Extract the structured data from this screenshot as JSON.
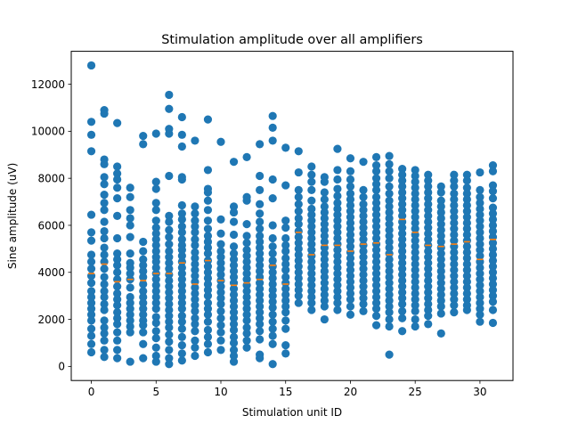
{
  "chart_data": {
    "type": "scatter",
    "title": "Stimulation amplitude over all amplifiers",
    "xlabel": "Stimulation unit ID",
    "ylabel": "Sine amplitude (uV)",
    "xlim": [
      -1.55,
      32.55
    ],
    "ylim": [
      -600,
      13400
    ],
    "xticks": [
      0,
      5,
      10,
      15,
      20,
      25,
      30
    ],
    "yticks": [
      0,
      2000,
      4000,
      6000,
      8000,
      10000,
      12000
    ],
    "xtick_labels": [
      "0",
      "5",
      "10",
      "15",
      "20",
      "25",
      "30"
    ],
    "ytick_labels": [
      "0",
      "2000",
      "4000",
      "6000",
      "8000",
      "10000",
      "12000"
    ],
    "grid": false,
    "legend": "none",
    "series": [
      {
        "marker": "circle",
        "color": "#1f77b4",
        "points_by_unit": [
          {
            "x": 0,
            "y": [
              12800,
              10400,
              9850,
              9150,
              6450,
              5700,
              5350,
              4750,
              4450,
              4150,
              3850,
              3550,
              3200,
              2950,
              2700,
              2450,
              2200,
              1950,
              1600,
              1300,
              950,
              600
            ]
          },
          {
            "x": 1,
            "y": [
              10900,
              10750,
              8800,
              8600,
              8050,
              7750,
              7300,
              6950,
              6650,
              6150,
              5750,
              5450,
              5050,
              4750,
              4450,
              4150,
              3800,
              3500,
              3200,
              2950,
              2650,
              2400,
              1950,
              1650,
              1400,
              1100,
              700,
              400
            ]
          },
          {
            "x": 2,
            "y": [
              10350,
              8500,
              8200,
              7950,
              7600,
              7150,
              6400,
              5450,
              4800,
              4550,
              4300,
              4000,
              3700,
              3400,
              3100,
              2850,
              2600,
              2300,
              2050,
              1800,
              1450,
              1100,
              700,
              350
            ]
          },
          {
            "x": 3,
            "y": [
              7600,
              7200,
              6650,
              6300,
              6000,
              5500,
              4800,
              4400,
              4200,
              3950,
              3700,
              3350,
              2950,
              2700,
              2450,
              2200,
              1950,
              1700,
              1450,
              200
            ]
          },
          {
            "x": 4,
            "y": [
              9800,
              9450,
              5300,
              4900,
              4550,
              4300,
              4050,
              3800,
              3500,
              3200,
              2950,
              2700,
              2450,
              2200,
              1950,
              1750,
              1450,
              950,
              350
            ]
          },
          {
            "x": 5,
            "y": [
              9900,
              7850,
              7550,
              6950,
              6650,
              6200,
              5900,
              5650,
              5400,
              5150,
              4900,
              4650,
              4450,
              4200,
              3950,
              3700,
              3450,
              3200,
              2950,
              2700,
              2450,
              2100,
              1850,
              1500,
              1200,
              800,
              450,
              200
            ]
          },
          {
            "x": 6,
            "y": [
              11550,
              10950,
              10100,
              9900,
              8100,
              6400,
              6150,
              5800,
              5500,
              5200,
              4900,
              4650,
              4400,
              4150,
              3900,
              3650,
              3400,
              3150,
              2900,
              2650,
              2400,
              2150,
              1900,
              1650,
              1350,
              1050,
              700,
              350,
              100
            ]
          },
          {
            "x": 7,
            "y": [
              10600,
              9850,
              9350,
              8050,
              7950,
              6850,
              6500,
              6250,
              5950,
              5700,
              5400,
              5150,
              4950,
              4700,
              4450,
              4200,
              3950,
              3700,
              3450,
              3200,
              2950,
              2700,
              2450,
              2150,
              1900,
              1600,
              1250,
              900,
              550,
              250
            ]
          },
          {
            "x": 8,
            "y": [
              9600,
              6800,
              6500,
              6200,
              5950,
              5700,
              5400,
              5150,
              4850,
              4600,
              4350,
              4100,
              3850,
              3600,
              3350,
              3100,
              2850,
              2600,
              2350,
              2050,
              1800,
              1500,
              1100,
              800,
              450
            ]
          },
          {
            "x": 9,
            "y": [
              10500,
              8350,
              7550,
              7400,
              7050,
              6650,
              6200,
              5850,
              5550,
              5300,
              5050,
              4800,
              4500,
              4250,
              4000,
              3750,
              3500,
              3250,
              3000,
              2700,
              2450,
              2200,
              1900,
              1550,
              1250,
              950,
              600
            ]
          },
          {
            "x": 10,
            "y": [
              9550,
              6250,
              5650,
              5200,
              4900,
              4650,
              4400,
              4150,
              3900,
              3650,
              3400,
              3150,
              2900,
              2650,
              2350,
              2050,
              1750,
              1450,
              1100,
              700
            ]
          },
          {
            "x": 11,
            "y": [
              8700,
              6800,
              6550,
              6150,
              5600,
              5100,
              4800,
              4550,
              4300,
              4050,
              3800,
              3550,
              3300,
              3050,
              2800,
              2550,
              2300,
              2050,
              1800,
              1550,
              1250,
              1000,
              700,
              450,
              200
            ]
          },
          {
            "x": 12,
            "y": [
              8900,
              7200,
              7050,
              6050,
              5550,
              5250,
              4950,
              4700,
              4450,
              4200,
              3950,
              3700,
              3450,
              3200,
              2950,
              2700,
              2450,
              2200,
              1950,
              1650,
              1400,
              1100,
              800
            ]
          },
          {
            "x": 13,
            "y": [
              9450,
              8100,
              7500,
              6900,
              6500,
              6150,
              5850,
              5550,
              5300,
              5050,
              4800,
              4550,
              4300,
              4050,
              3800,
              3550,
              3300,
              3050,
              2800,
              2550,
              2300,
              2050,
              1800,
              1500,
              1150,
              500,
              350
            ]
          },
          {
            "x": 14,
            "y": [
              10650,
              10150,
              9600,
              7950,
              7150,
              6000,
              5450,
              5100,
              4800,
              4500,
              4250,
              4000,
              3750,
              3500,
              3250,
              3000,
              2750,
              2500,
              2200,
              1900,
              1600,
              1300,
              950,
              100
            ]
          },
          {
            "x": 15,
            "y": [
              9300,
              7700,
              6200,
              5900,
              5450,
              5150,
              4900,
              4600,
              4350,
              4100,
              3800,
              3550,
              3300,
              3050,
              2800,
              2550,
              2300,
              1950,
              1600,
              900,
              550
            ]
          },
          {
            "x": 16,
            "y": [
              9150,
              8250,
              7500,
              7200,
              6900,
              6600,
              6300,
              6050,
              5750,
              5500,
              5250,
              5000,
              4750,
              4500,
              4250,
              4000,
              3750,
              3500,
              3250,
              3000,
              2700
            ]
          },
          {
            "x": 17,
            "y": [
              8500,
              8150,
              7850,
              7500,
              7050,
              6700,
              6450,
              6200,
              5950,
              5700,
              5450,
              5200,
              4950,
              4700,
              4450,
              4200,
              3950,
              3700,
              3450,
              3200,
              2950,
              2700,
              2400
            ]
          },
          {
            "x": 18,
            "y": [
              8050,
              7850,
              7400,
              7100,
              6800,
              6550,
              6300,
              6050,
              5800,
              5550,
              5300,
              5050,
              4800,
              4550,
              4300,
              4050,
              3800,
              3550,
              3300,
              3050,
              2800,
              2550,
              2000
            ]
          },
          {
            "x": 19,
            "y": [
              9250,
              8350,
              7950,
              7550,
              7250,
              6950,
              6700,
              6450,
              6200,
              5950,
              5700,
              5450,
              5200,
              4950,
              4700,
              4450,
              4200,
              3950,
              3700,
              3450,
              3200,
              2950,
              2700,
              2400
            ]
          },
          {
            "x": 20,
            "y": [
              8850,
              8300,
              7950,
              7650,
              7350,
              7100,
              6850,
              6600,
              6350,
              6100,
              5850,
              5600,
              5350,
              5100,
              4850,
              4600,
              4350,
              4100,
              3850,
              3600,
              3350,
              3100,
              2850,
              2550,
              2200
            ]
          },
          {
            "x": 21,
            "y": [
              8700,
              7500,
              7200,
              6900,
              6650,
              6400,
              6150,
              5900,
              5650,
              5400,
              5150,
              4900,
              4650,
              4400,
              4150,
              3900,
              3650,
              3400,
              3150,
              2900,
              2650,
              2350
            ]
          },
          {
            "x": 22,
            "y": [
              8900,
              8550,
              8300,
              8000,
              7750,
              7500,
              7200,
              6950,
              6700,
              6450,
              6200,
              5950,
              5700,
              5450,
              5200,
              4950,
              4700,
              4450,
              4200,
              3950,
              3700,
              3450,
              3200,
              2950,
              2700,
              2450,
              2150,
              1750
            ]
          },
          {
            "x": 23,
            "y": [
              8950,
              8600,
              8300,
              8000,
              7650,
              7350,
              7050,
              6800,
              6550,
              6300,
              6050,
              5800,
              5550,
              5300,
              5050,
              4800,
              4550,
              4300,
              4050,
              3800,
              3550,
              3300,
              3050,
              2800,
              2550,
              2300,
              2000,
              1700,
              500
            ]
          },
          {
            "x": 24,
            "y": [
              8400,
              8150,
              7900,
              7650,
              7400,
              7150,
              6900,
              6650,
              6400,
              6150,
              5900,
              5650,
              5400,
              5150,
              4900,
              4650,
              4400,
              4150,
              3900,
              3650,
              3400,
              3150,
              2900,
              2650,
              2350,
              2050,
              1500
            ]
          },
          {
            "x": 25,
            "y": [
              8350,
              8100,
              7850,
              7600,
              7350,
              7100,
              6850,
              6600,
              6350,
              6100,
              5850,
              5600,
              5350,
              5100,
              4850,
              4600,
              4350,
              4100,
              3850,
              3600,
              3350,
              3100,
              2850,
              2600,
              2350,
              2000,
              1700
            ]
          },
          {
            "x": 26,
            "y": [
              8150,
              7900,
              7650,
              7400,
              7150,
              6900,
              6650,
              6400,
              6150,
              5900,
              5650,
              5400,
              5150,
              4900,
              4650,
              4400,
              4150,
              3900,
              3650,
              3400,
              3150,
              2900,
              2650,
              2400,
              2150,
              1800
            ]
          },
          {
            "x": 27,
            "y": [
              7650,
              7400,
              7050,
              6800,
              6550,
              6300,
              6050,
              5800,
              5550,
              5300,
              5050,
              4800,
              4550,
              4300,
              4050,
              3800,
              3550,
              3300,
              3050,
              2800,
              2550,
              2250,
              1400
            ]
          },
          {
            "x": 28,
            "y": [
              8150,
              7900,
              7650,
              7350,
              7100,
              6850,
              6600,
              6350,
              6100,
              5850,
              5600,
              5350,
              5100,
              4850,
              4600,
              4350,
              4100,
              3850,
              3600,
              3350,
              3100,
              2850,
              2600,
              2300
            ]
          },
          {
            "x": 29,
            "y": [
              8150,
              7900,
              7600,
              7350,
              7100,
              6850,
              6600,
              6350,
              6100,
              5850,
              5600,
              5350,
              5100,
              4850,
              4600,
              4350,
              4100,
              3850,
              3600,
              3350,
              3100,
              2850,
              2600,
              2400
            ]
          },
          {
            "x": 30,
            "y": [
              8250,
              7500,
              7200,
              6950,
              6700,
              6450,
              6200,
              5950,
              5700,
              5450,
              5200,
              4950,
              4700,
              4450,
              4200,
              3950,
              3700,
              3450,
              3200,
              2950,
              2700,
              2450,
              2200,
              1900
            ]
          },
          {
            "x": 31,
            "y": [
              8550,
              8300,
              7700,
              7450,
              7150,
              6750,
              6500,
              6250,
              6000,
              5750,
              5500,
              5250,
              5000,
              4750,
              4500,
              4250,
              4000,
              3750,
              3500,
              3250,
              3000,
              2750,
              2400,
              1850
            ]
          }
        ]
      }
    ],
    "medians": {
      "color": "#ff7f0e",
      "x": [
        0,
        1,
        2,
        3,
        4,
        5,
        6,
        7,
        8,
        9,
        10,
        11,
        12,
        13,
        14,
        15,
        16,
        17,
        18,
        19,
        20,
        21,
        22,
        23,
        24,
        25,
        26,
        27,
        28,
        29,
        30,
        31
      ],
      "y": [
        3950,
        4350,
        3600,
        3700,
        3650,
        3950,
        3950,
        4400,
        3500,
        4500,
        3650,
        3450,
        3550,
        3700,
        4300,
        3500,
        5700,
        4750,
        5150,
        5150,
        4900,
        5200,
        5250,
        4750,
        6250,
        5700,
        5150,
        5100,
        5200,
        5300,
        4550,
        5400
      ]
    }
  }
}
